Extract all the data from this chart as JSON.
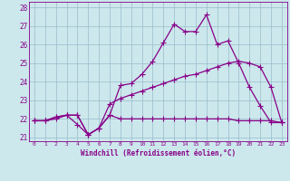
{
  "xlabel": "Windchill (Refroidissement éolien,°C)",
  "x": [
    0,
    1,
    2,
    3,
    4,
    5,
    6,
    7,
    8,
    9,
    10,
    11,
    12,
    13,
    14,
    15,
    16,
    17,
    18,
    19,
    20,
    21,
    22,
    23
  ],
  "line1": [
    21.9,
    21.9,
    22.1,
    22.2,
    22.2,
    21.15,
    21.5,
    22.2,
    23.8,
    23.9,
    24.4,
    25.1,
    26.1,
    27.1,
    26.7,
    26.7,
    27.6,
    26.0,
    26.2,
    25.0,
    23.7,
    22.7,
    21.8,
    21.8
  ],
  "line2": [
    21.9,
    21.9,
    22.0,
    22.2,
    21.7,
    21.15,
    21.5,
    22.2,
    22.0,
    22.0,
    22.0,
    22.0,
    22.0,
    22.0,
    22.0,
    22.0,
    22.0,
    22.0,
    22.0,
    21.9,
    21.9,
    21.9,
    21.9,
    21.8
  ],
  "line3": [
    21.9,
    21.9,
    22.1,
    22.2,
    22.2,
    21.15,
    21.5,
    22.8,
    23.1,
    23.3,
    23.5,
    23.7,
    23.9,
    24.1,
    24.3,
    24.4,
    24.6,
    24.8,
    25.0,
    25.1,
    25.0,
    24.8,
    23.7,
    21.8
  ],
  "ylim_min": 20.8,
  "ylim_max": 28.3,
  "yticks": [
    21,
    22,
    23,
    24,
    25,
    26,
    27,
    28
  ],
  "bg_color": "#cce8ec",
  "line_color": "#880088",
  "grid_color": "#99bbcc",
  "markersize": 2.5,
  "linewidth": 0.9
}
